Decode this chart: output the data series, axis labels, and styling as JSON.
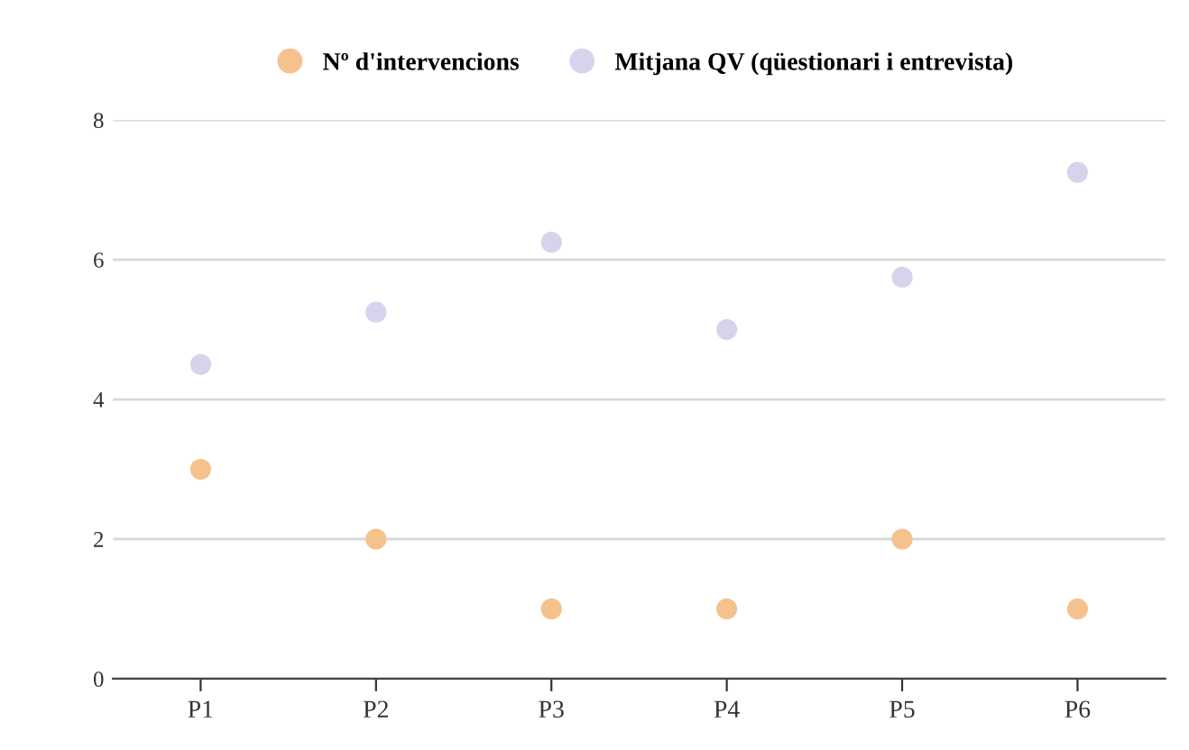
{
  "chart_data": {
    "type": "scatter",
    "categories": [
      "P1",
      "P2",
      "P3",
      "P4",
      "P5",
      "P6"
    ],
    "series": [
      {
        "name": "Nº d'intervencions",
        "color": "#f5c28e",
        "values": [
          3,
          2,
          1,
          1,
          2,
          1
        ]
      },
      {
        "name": "Mitjana QV (qüestionari i entrevista)",
        "color": "#d6d4ec",
        "values": [
          4.5,
          5.25,
          6.25,
          5,
          5.75,
          7.25
        ]
      }
    ],
    "ylim": [
      0,
      8
    ],
    "yticks": [
      0,
      2,
      4,
      6,
      8
    ],
    "grid": "y",
    "legend": "top",
    "marker": "circle"
  }
}
